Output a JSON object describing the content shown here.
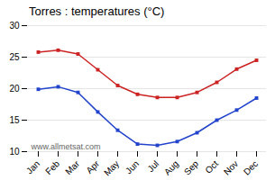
{
  "chart_data": {
    "type": "line",
    "title": "Torres : temperatures (°C)",
    "categories": [
      "Jan",
      "Feb",
      "Mar",
      "Apr",
      "May",
      "Jun",
      "Jul",
      "Aug",
      "Sep",
      "Oct",
      "Nov",
      "Dec"
    ],
    "series": [
      {
        "color": "#cc2222",
        "marker": "square",
        "values": [
          25.8,
          26.1,
          25.5,
          23.0,
          20.5,
          19.1,
          18.6,
          18.6,
          19.4,
          21.0,
          23.1,
          24.5
        ]
      },
      {
        "color": "#2244cc",
        "marker": "square",
        "values": [
          19.9,
          20.3,
          19.4,
          16.3,
          13.4,
          11.2,
          11.0,
          11.6,
          13.0,
          15.0,
          16.6,
          18.5
        ]
      }
    ],
    "ylim": [
      10,
      30
    ],
    "yticks": [
      10,
      15,
      20,
      25,
      30
    ],
    "grid": "y",
    "annotations": [
      "www.allmetsat.com"
    ]
  }
}
